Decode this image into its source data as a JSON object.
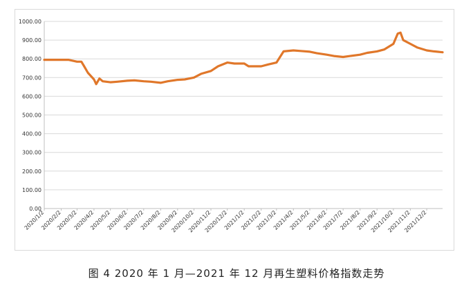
{
  "caption": "图 4  2020 年 1 月—2021 年 12 月再生塑料价格指数走势",
  "colors": {
    "line": "#e0772a",
    "grid": "#d9d9d9"
  },
  "chart_data": {
    "type": "line",
    "title": "",
    "xlabel": "",
    "ylabel": "",
    "ylim": [
      0,
      1000
    ],
    "yticks": [
      "0.00",
      "100.00",
      "200.00",
      "300.00",
      "400.00",
      "500.00",
      "600.00",
      "700.00",
      "800.00",
      "900.00",
      "1000.00"
    ],
    "grid": true,
    "legend": "none",
    "xtick_labels": [
      "2020/1/2",
      "2020/2/2",
      "2020/3/2",
      "2020/4/2",
      "2020/5/2",
      "2020/6/2",
      "2020/7/2",
      "2020/8/2",
      "2020/9/2",
      "2020/10/2",
      "2020/11/2",
      "2020/12/2",
      "2021/1/2",
      "2021/2/2",
      "2021/3/2",
      "2021/4/2",
      "2021/5/2",
      "2021/6/2",
      "2021/7/2",
      "2021/8/2",
      "2021/9/2",
      "2021/10/2",
      "2021/11/2",
      "2021/12/2"
    ],
    "series": [
      {
        "name": "",
        "x": [
          "2020/1/2",
          "2020/1/15",
          "2020/2/2",
          "2020/2/15",
          "2020/3/2",
          "2020/3/10",
          "2020/3/15",
          "2020/3/22",
          "2020/4/2",
          "2020/4/6",
          "2020/4/12",
          "2020/4/18",
          "2020/5/2",
          "2020/5/15",
          "2020/6/2",
          "2020/6/15",
          "2020/7/2",
          "2020/7/15",
          "2020/8/2",
          "2020/8/15",
          "2020/9/2",
          "2020/9/15",
          "2020/10/2",
          "2020/10/15",
          "2020/11/2",
          "2020/11/15",
          "2020/12/2",
          "2020/12/15",
          "2021/1/2",
          "2021/1/10",
          "2021/1/20",
          "2021/2/2",
          "2021/2/15",
          "2021/3/2",
          "2021/3/15",
          "2021/4/2",
          "2021/4/15",
          "2021/5/2",
          "2021/5/15",
          "2021/6/2",
          "2021/6/15",
          "2021/7/2",
          "2021/7/15",
          "2021/8/2",
          "2021/8/15",
          "2021/9/2",
          "2021/9/15",
          "2021/10/2",
          "2021/10/10",
          "2021/10/15",
          "2021/10/20",
          "2021/11/2",
          "2021/11/15",
          "2021/12/2",
          "2021/12/15",
          "2021/12/31"
        ],
        "values": [
          795,
          795,
          795,
          795,
          785,
          785,
          760,
          725,
          690,
          665,
          695,
          680,
          675,
          678,
          683,
          685,
          680,
          678,
          672,
          680,
          688,
          690,
          700,
          720,
          735,
          760,
          780,
          775,
          775,
          760,
          760,
          760,
          770,
          780,
          840,
          845,
          842,
          838,
          830,
          822,
          815,
          810,
          815,
          822,
          832,
          840,
          850,
          880,
          935,
          940,
          900,
          880,
          860,
          845,
          840,
          835
        ]
      }
    ]
  }
}
